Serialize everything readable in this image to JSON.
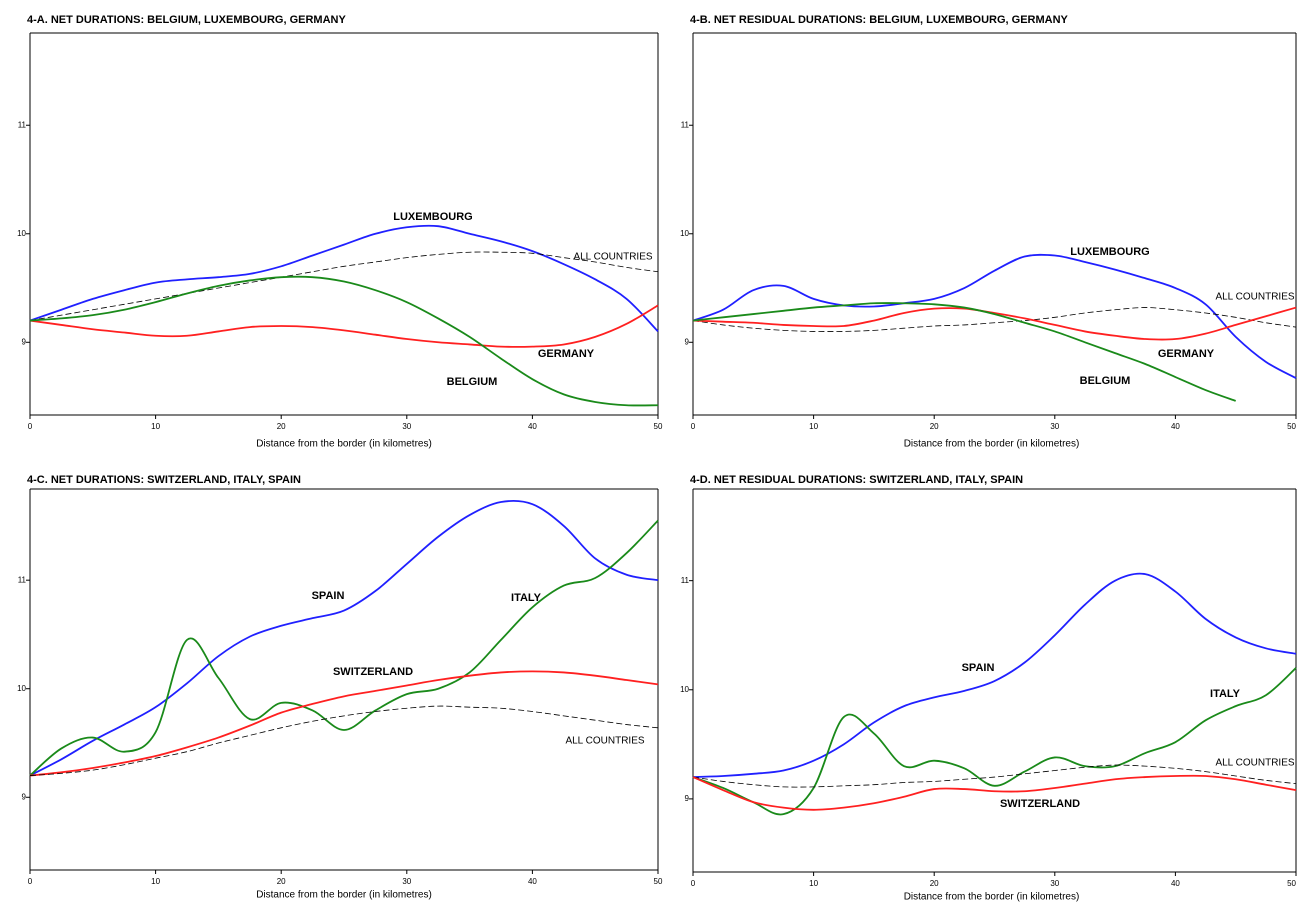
{
  "chart_data": [
    {
      "type": "line",
      "title": "4-A. NET DURATIONS: BELGIUM, LUXEMBOURG, GERMANY",
      "x_label": "Distance from the border (in kilometres)",
      "x": [
        0,
        2.5,
        5,
        7.5,
        10,
        12.5,
        15,
        17.5,
        20,
        22.5,
        25,
        27.5,
        30,
        32.5,
        35,
        37.5,
        40,
        42.5,
        45,
        47.5,
        50
      ],
      "xlim": [
        0,
        50
      ],
      "xticks": [
        0,
        10,
        20,
        30,
        40,
        50
      ],
      "ylim": [
        8.33,
        11.85
      ],
      "yticks": [
        9,
        10,
        11
      ],
      "series": [
        {
          "name": "LUXEMBOURG",
          "color": "#2020ff",
          "values": [
            9.2,
            9.3,
            9.4,
            9.48,
            9.55,
            9.58,
            9.6,
            9.63,
            9.7,
            9.8,
            9.9,
            10.0,
            10.06,
            10.07,
            10.0,
            9.93,
            9.84,
            9.72,
            9.58,
            9.4,
            9.1
          ]
        },
        {
          "name": "ALL COUNTRIES",
          "color": "#000000",
          "dashed": true,
          "values": [
            9.2,
            9.25,
            9.3,
            9.35,
            9.4,
            9.45,
            9.5,
            9.55,
            9.6,
            9.65,
            9.7,
            9.74,
            9.78,
            9.81,
            9.83,
            9.83,
            9.82,
            9.78,
            9.74,
            9.69,
            9.65
          ]
        },
        {
          "name": "GERMANY",
          "color": "#ff2020",
          "values": [
            9.2,
            9.16,
            9.12,
            9.09,
            9.06,
            9.06,
            9.1,
            9.14,
            9.15,
            9.14,
            9.11,
            9.07,
            9.03,
            9.0,
            8.98,
            8.96,
            8.96,
            8.98,
            9.05,
            9.17,
            9.34
          ]
        },
        {
          "name": "BELGIUM",
          "color": "#1a8a1a",
          "values": [
            9.2,
            9.22,
            9.25,
            9.3,
            9.37,
            9.45,
            9.52,
            9.57,
            9.6,
            9.6,
            9.56,
            9.48,
            9.37,
            9.22,
            9.05,
            8.85,
            8.66,
            8.52,
            8.45,
            8.42,
            8.42
          ]
        }
      ]
    },
    {
      "type": "line",
      "title": "4-B. NET RESIDUAL DURATIONS: BELGIUM, LUXEMBOURG, GERMANY",
      "x_label": "Distance from the border (in kilometres)",
      "x": [
        0,
        2.5,
        5,
        7.5,
        10,
        12.5,
        15,
        17.5,
        20,
        22.5,
        25,
        27.5,
        30,
        32.5,
        35,
        37.5,
        40,
        42.5,
        45,
        47.5,
        50
      ],
      "xlim": [
        0,
        50
      ],
      "xticks": [
        0,
        10,
        20,
        30,
        40,
        50
      ],
      "ylim": [
        8.33,
        11.85
      ],
      "yticks": [
        9,
        10,
        11
      ],
      "series": [
        {
          "name": "LUXEMBOURG",
          "color": "#2020ff",
          "values": [
            9.2,
            9.3,
            9.48,
            9.52,
            9.4,
            9.34,
            9.33,
            9.36,
            9.4,
            9.5,
            9.66,
            9.79,
            9.8,
            9.74,
            9.67,
            9.59,
            9.5,
            9.35,
            9.05,
            8.82,
            8.67
          ]
        },
        {
          "name": "ALL COUNTRIES",
          "color": "#000000",
          "dashed": true,
          "values": [
            9.2,
            9.16,
            9.13,
            9.11,
            9.1,
            9.1,
            9.11,
            9.13,
            9.15,
            9.16,
            9.18,
            9.2,
            9.23,
            9.27,
            9.3,
            9.32,
            9.3,
            9.27,
            9.23,
            9.18,
            9.14
          ]
        },
        {
          "name": "GERMANY",
          "color": "#ff2020",
          "values": [
            9.2,
            9.19,
            9.18,
            9.16,
            9.15,
            9.15,
            9.2,
            9.27,
            9.31,
            9.31,
            9.27,
            9.22,
            9.16,
            9.1,
            9.06,
            9.03,
            9.03,
            9.08,
            9.16,
            9.24,
            9.32
          ]
        },
        {
          "name": "BELGIUM",
          "color": "#1a8a1a",
          "values": [
            9.2,
            9.23,
            9.26,
            9.29,
            9.32,
            9.34,
            9.36,
            9.36,
            9.35,
            9.32,
            9.26,
            9.18,
            9.1,
            9.0,
            8.9,
            8.8,
            8.68,
            8.56,
            8.46,
            null,
            null
          ]
        }
      ]
    },
    {
      "type": "line",
      "title": "4-C. NET DURATIONS: SWITZERLAND, ITALY, SPAIN",
      "x_label": "Distance from the border (in kilometres)",
      "x": [
        0,
        2.5,
        5,
        7.5,
        10,
        12.5,
        15,
        17.5,
        20,
        22.5,
        25,
        27.5,
        30,
        32.5,
        35,
        37.5,
        40,
        42.5,
        45,
        47.5,
        50
      ],
      "xlim": [
        0,
        50
      ],
      "xticks": [
        0,
        10,
        20,
        30,
        40,
        50
      ],
      "ylim": [
        8.33,
        11.84
      ],
      "yticks": [
        9,
        10,
        11
      ],
      "series": [
        {
          "name": "SPAIN",
          "color": "#2020ff",
          "values": [
            9.2,
            9.35,
            9.52,
            9.67,
            9.83,
            10.05,
            10.3,
            10.48,
            10.58,
            10.65,
            10.72,
            10.9,
            11.15,
            11.4,
            11.6,
            11.72,
            11.7,
            11.5,
            11.2,
            11.05,
            11.0
          ]
        },
        {
          "name": "ITALY",
          "color": "#1a8a1a",
          "values": [
            9.2,
            9.45,
            9.55,
            9.42,
            9.6,
            10.45,
            10.1,
            9.72,
            9.87,
            9.8,
            9.62,
            9.8,
            9.95,
            10.0,
            10.15,
            10.45,
            10.75,
            10.95,
            11.02,
            11.25,
            11.55
          ]
        },
        {
          "name": "SWITZERLAND",
          "color": "#ff2020",
          "values": [
            9.2,
            9.23,
            9.27,
            9.32,
            9.38,
            9.46,
            9.55,
            9.66,
            9.78,
            9.86,
            9.93,
            9.98,
            10.03,
            10.08,
            10.12,
            10.15,
            10.16,
            10.15,
            10.12,
            10.08,
            10.04
          ]
        },
        {
          "name": "ALL COUNTRIES",
          "color": "#000000",
          "dashed": true,
          "values": [
            9.2,
            9.22,
            9.25,
            9.3,
            9.36,
            9.42,
            9.5,
            9.57,
            9.64,
            9.7,
            9.75,
            9.79,
            9.82,
            9.84,
            9.83,
            9.82,
            9.79,
            9.75,
            9.71,
            9.67,
            9.64
          ]
        }
      ]
    },
    {
      "type": "line",
      "title": "4-D. NET RESIDUAL DURATIONS: SWITZERLAND, ITALY, SPAIN",
      "x_label": "Distance from the border (in kilometres)",
      "x": [
        0,
        2.5,
        5,
        7.5,
        10,
        12.5,
        15,
        17.5,
        20,
        22.5,
        25,
        27.5,
        30,
        32.5,
        35,
        37.5,
        40,
        42.5,
        45,
        47.5,
        50
      ],
      "xlim": [
        0,
        50
      ],
      "xticks": [
        0,
        10,
        20,
        30,
        40,
        50
      ],
      "ylim": [
        8.33,
        11.84
      ],
      "yticks": [
        9,
        10,
        11
      ],
      "series": [
        {
          "name": "SPAIN",
          "color": "#2020ff",
          "values": [
            9.2,
            9.21,
            9.23,
            9.26,
            9.35,
            9.5,
            9.7,
            9.85,
            9.93,
            9.99,
            10.08,
            10.25,
            10.5,
            10.78,
            11.0,
            11.06,
            10.9,
            10.65,
            10.48,
            10.38,
            10.33
          ]
        },
        {
          "name": "ITALY",
          "color": "#1a8a1a",
          "values": [
            9.2,
            9.1,
            8.97,
            8.86,
            9.1,
            9.75,
            9.6,
            9.3,
            9.35,
            9.28,
            9.12,
            9.25,
            9.38,
            9.3,
            9.3,
            9.42,
            9.52,
            9.72,
            9.85,
            9.95,
            10.2
          ]
        },
        {
          "name": "ALL COUNTRIES",
          "color": "#000000",
          "dashed": true,
          "values": [
            9.2,
            9.16,
            9.13,
            9.11,
            9.11,
            9.12,
            9.13,
            9.15,
            9.16,
            9.18,
            9.2,
            9.23,
            9.26,
            9.29,
            9.31,
            9.3,
            9.28,
            9.25,
            9.21,
            9.17,
            9.14
          ]
        },
        {
          "name": "SWITZERLAND",
          "color": "#ff2020",
          "values": [
            9.2,
            9.08,
            8.97,
            8.92,
            8.9,
            8.92,
            8.96,
            9.02,
            9.09,
            9.09,
            9.07,
            9.07,
            9.1,
            9.14,
            9.18,
            9.2,
            9.21,
            9.21,
            9.18,
            9.13,
            9.08
          ]
        }
      ]
    }
  ]
}
